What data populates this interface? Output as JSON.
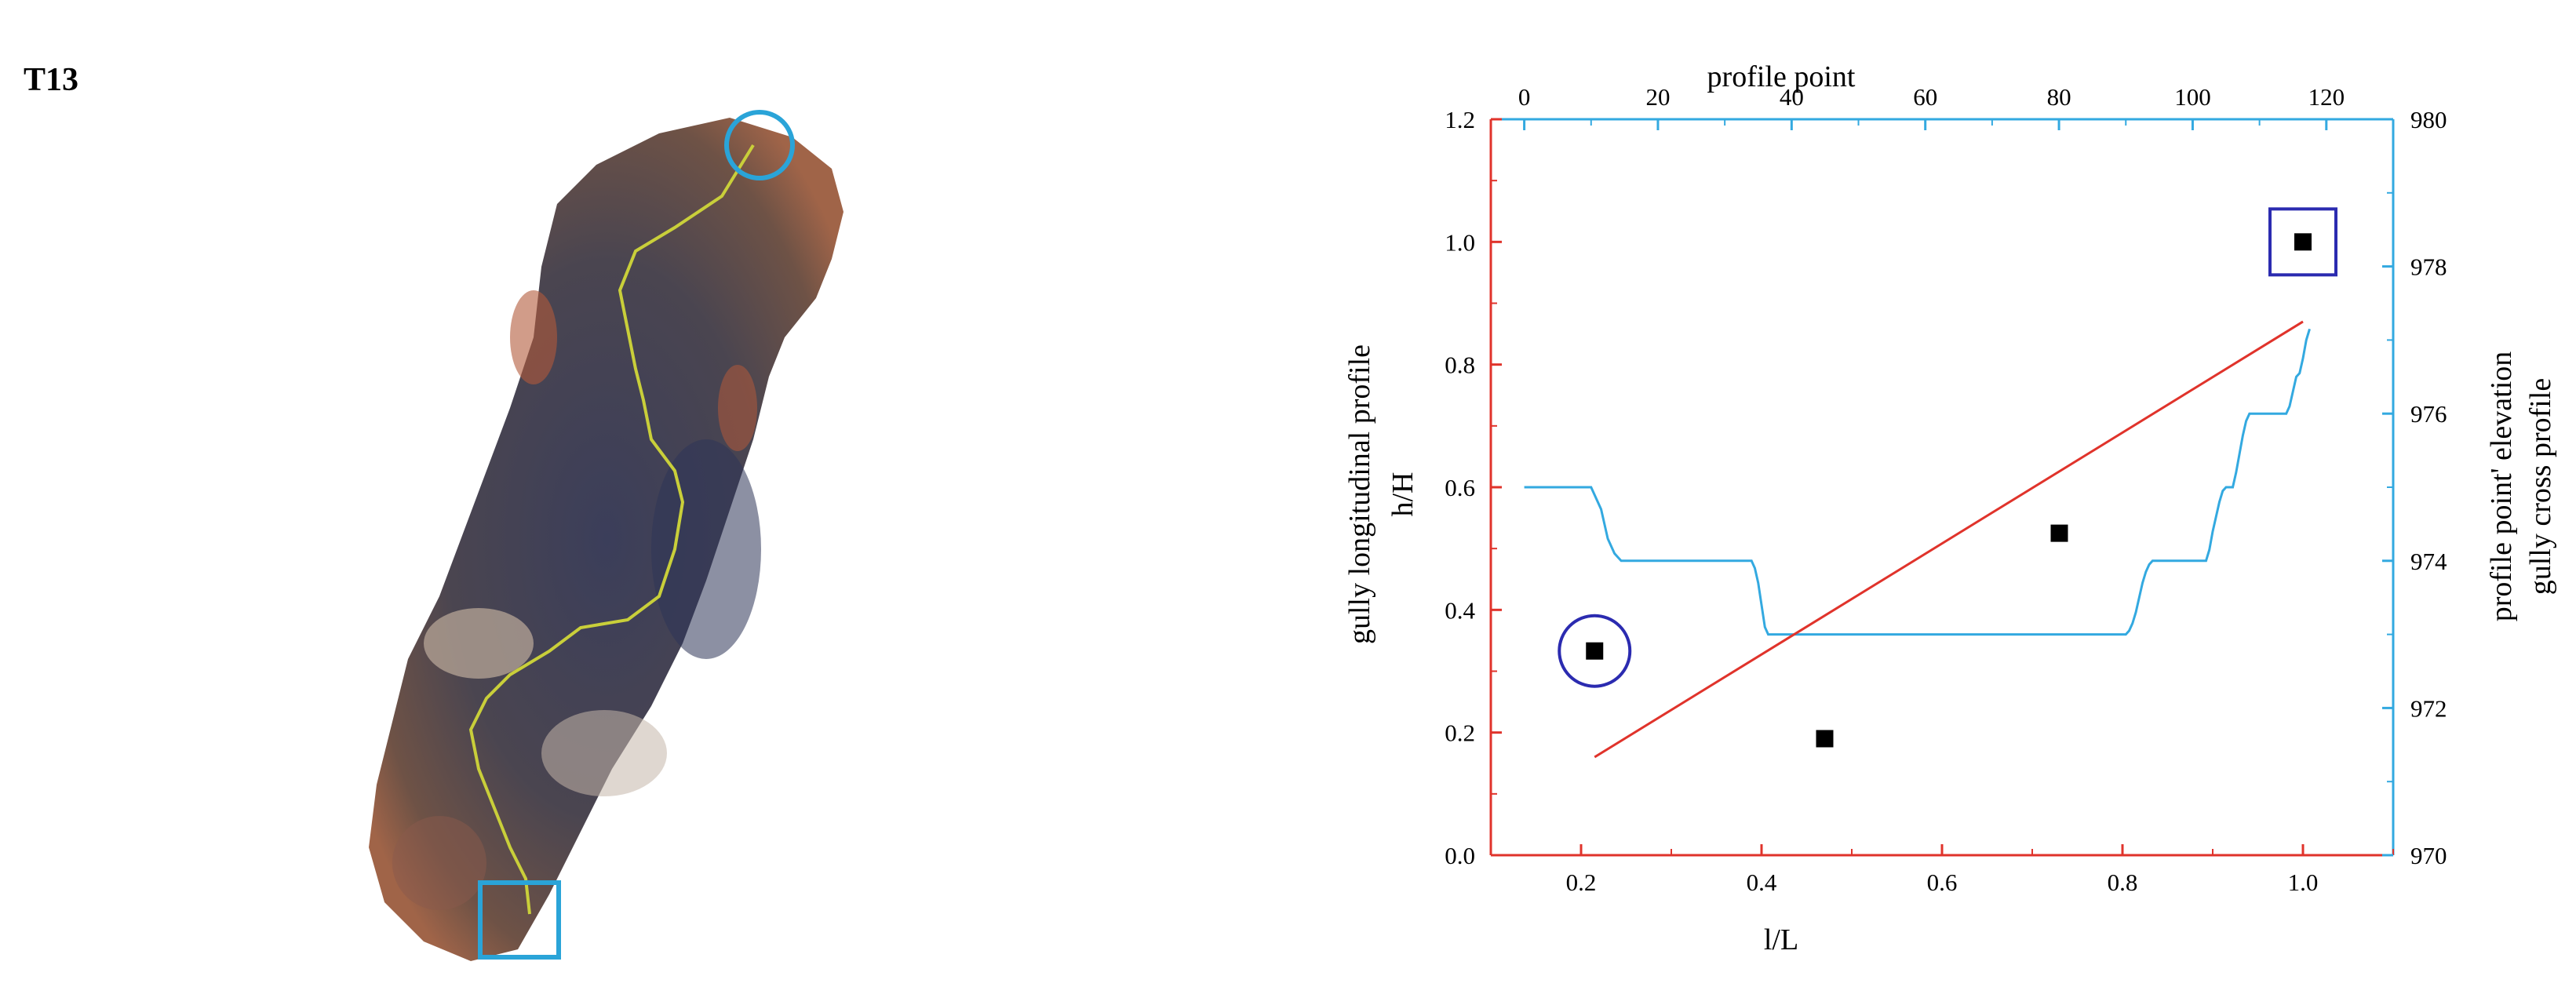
{
  "panel_label": "T13",
  "colors": {
    "gully_line": "#c9cf3a",
    "circle_marker": "#2aa4d8",
    "square_marker": "#2aa4d8",
    "longitudinal_line": "#e0332b",
    "cross_profile": "#33a9e0",
    "point_marker": "#000000",
    "highlight": "#2b2bb0"
  },
  "chart_data": {
    "type": "scatter",
    "xlabel": "l/L",
    "ylabel_left": [
      "gully longitudinal profile",
      "h/H"
    ],
    "xlabel_top": "profile point",
    "ylabel_right": [
      "profile point' elevation",
      "gully cross profile"
    ],
    "xlim": [
      0.1,
      1.1
    ],
    "ylim": [
      0.0,
      1.2
    ],
    "x2lim": [
      -5,
      130
    ],
    "y2lim": [
      970,
      980
    ],
    "xticks": [
      "0.2",
      "0.4",
      "0.6",
      "0.8",
      "1.0"
    ],
    "yticks": [
      "0.0",
      "0.2",
      "0.4",
      "0.6",
      "0.8",
      "1.0",
      "1.2"
    ],
    "x2ticks": [
      "0",
      "20",
      "40",
      "60",
      "80",
      "100",
      "120"
    ],
    "y2ticks": [
      "970",
      "972",
      "974",
      "976",
      "978",
      "980"
    ],
    "points": {
      "x": [
        0.215,
        0.47,
        0.73,
        1.0
      ],
      "y": [
        0.333,
        0.19,
        0.525,
        1.0
      ]
    },
    "circled_point": [
      0.215,
      0.333
    ],
    "boxed_point": [
      1.0,
      1.0
    ],
    "longitudinal_line": {
      "x": [
        0.215,
        1.0
      ],
      "y": [
        0.16,
        0.87
      ]
    },
    "cross_profile": {
      "x": [
        0,
        10,
        10.5,
        11,
        11.5,
        12,
        12.5,
        13,
        13.5,
        14,
        14.5,
        15,
        34,
        34.5,
        35,
        35.5,
        36,
        36.5,
        37,
        90,
        90.5,
        91,
        91.5,
        92,
        92.5,
        93,
        93.5,
        94,
        102,
        102.5,
        103,
        103.5,
        104,
        104.5,
        105,
        106,
        106.5,
        107,
        107.5,
        108,
        108.5,
        109,
        109.5,
        110,
        114,
        114.5,
        115,
        115.5,
        116,
        116,
        116.5,
        117,
        117.5
      ],
      "y": [
        975,
        975,
        974.9,
        974.8,
        974.7,
        974.5,
        974.3,
        974.2,
        974.1,
        974.05,
        974.0,
        974,
        974,
        973.9,
        973.7,
        973.4,
        973.1,
        973.0,
        973,
        973,
        973.05,
        973.15,
        973.3,
        973.5,
        973.7,
        973.85,
        973.95,
        974,
        974,
        974.15,
        974.4,
        974.6,
        974.8,
        974.95,
        975,
        975,
        975.2,
        975.45,
        975.7,
        975.9,
        976.0,
        976.0,
        976.0,
        976,
        976,
        976.1,
        976.3,
        976.5,
        976.55,
        976.55,
        976.75,
        977.0,
        977.15
      ]
    }
  }
}
